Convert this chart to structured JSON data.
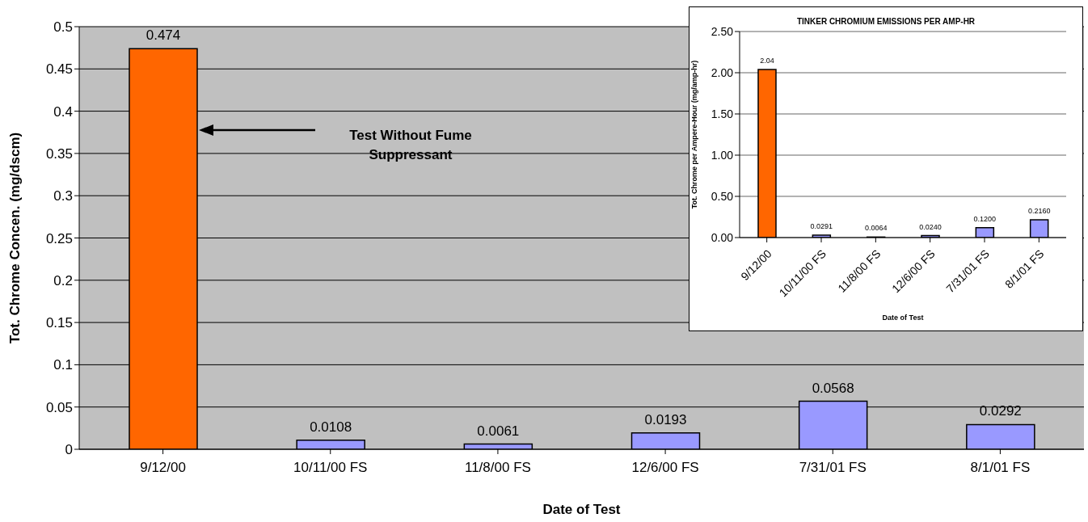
{
  "chart_data": [
    {
      "type": "bar",
      "categories": [
        "9/12/00",
        "10/11/00 FS",
        "11/8/00 FS",
        "12/6/00 FS",
        "7/31/01 FS",
        "8/1/01 FS"
      ],
      "values": [
        0.474,
        0.0108,
        0.0061,
        0.0193,
        0.0568,
        0.0292
      ],
      "colors": [
        "#ff6600",
        "#9999ff",
        "#9999ff",
        "#9999ff",
        "#9999ff",
        "#9999ff"
      ],
      "xlabel": "Date of Test",
      "ylabel": "Tot. Chrome Concen. (mg/dscm)",
      "ylim": [
        0,
        0.5
      ],
      "yticks": [
        0,
        0.05,
        0.1,
        0.15,
        0.2,
        0.25,
        0.3,
        0.35,
        0.4,
        0.45,
        0.5
      ],
      "grid": "y",
      "data_labels": true,
      "annotations": [
        "Test Without Fume Suppressant"
      ]
    },
    {
      "type": "bar",
      "title": "TINKER CHROMIUM EMISSIONS PER AMP-HR",
      "categories": [
        "9/12/00",
        "10/11/00 FS",
        "11/8/00 FS",
        "12/6/00 FS",
        "7/31/01 FS",
        "8/1/01 FS"
      ],
      "values": [
        2.04,
        0.0291,
        0.0064,
        0.024,
        0.12,
        0.216
      ],
      "value_labels": [
        "2.04",
        "0.0291",
        "0.0064",
        "0.0240",
        "0.1200",
        "0.2160"
      ],
      "colors": [
        "#ff6600",
        "#9999ff",
        "#9999ff",
        "#9999ff",
        "#9999ff",
        "#9999ff"
      ],
      "xlabel": "Date of Test",
      "ylabel": "Tot. Chrome per Ampere-Hour (mg/amp-hr)",
      "ylim": [
        0,
        2.5
      ],
      "yticks": [
        {
          "value": 0,
          "label": "0.00"
        },
        {
          "value": 0.5,
          "label": "0.50"
        },
        {
          "value": 1,
          "label": "1.00"
        },
        {
          "value": 1.5,
          "label": "1.50"
        },
        {
          "value": 2,
          "label": "2.00"
        },
        {
          "value": 2.5,
          "label": "2.50"
        }
      ],
      "grid": "y"
    }
  ]
}
